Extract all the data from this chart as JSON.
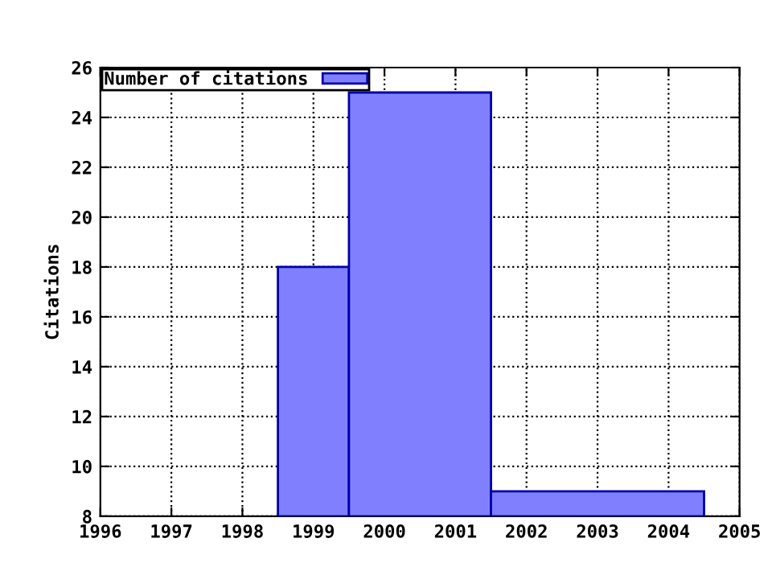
{
  "chart_data": {
    "type": "histogram",
    "ylabel": "Citations",
    "series": [
      {
        "name": "Number of citations",
        "color": "#8080ff",
        "values": [
          18,
          25,
          9
        ]
      }
    ],
    "bins": [
      1998.5,
      1999.5,
      2001.5,
      2004.5
    ],
    "xlim": [
      1996,
      2005
    ],
    "xticks": [
      1996,
      1997,
      1998,
      1999,
      2000,
      2001,
      2002,
      2003,
      2004,
      2005
    ],
    "ylim": [
      8,
      26
    ],
    "yticks": [
      8,
      10,
      12,
      14,
      16,
      18,
      20,
      22,
      24,
      26
    ],
    "grid": true,
    "legend": "top left"
  }
}
